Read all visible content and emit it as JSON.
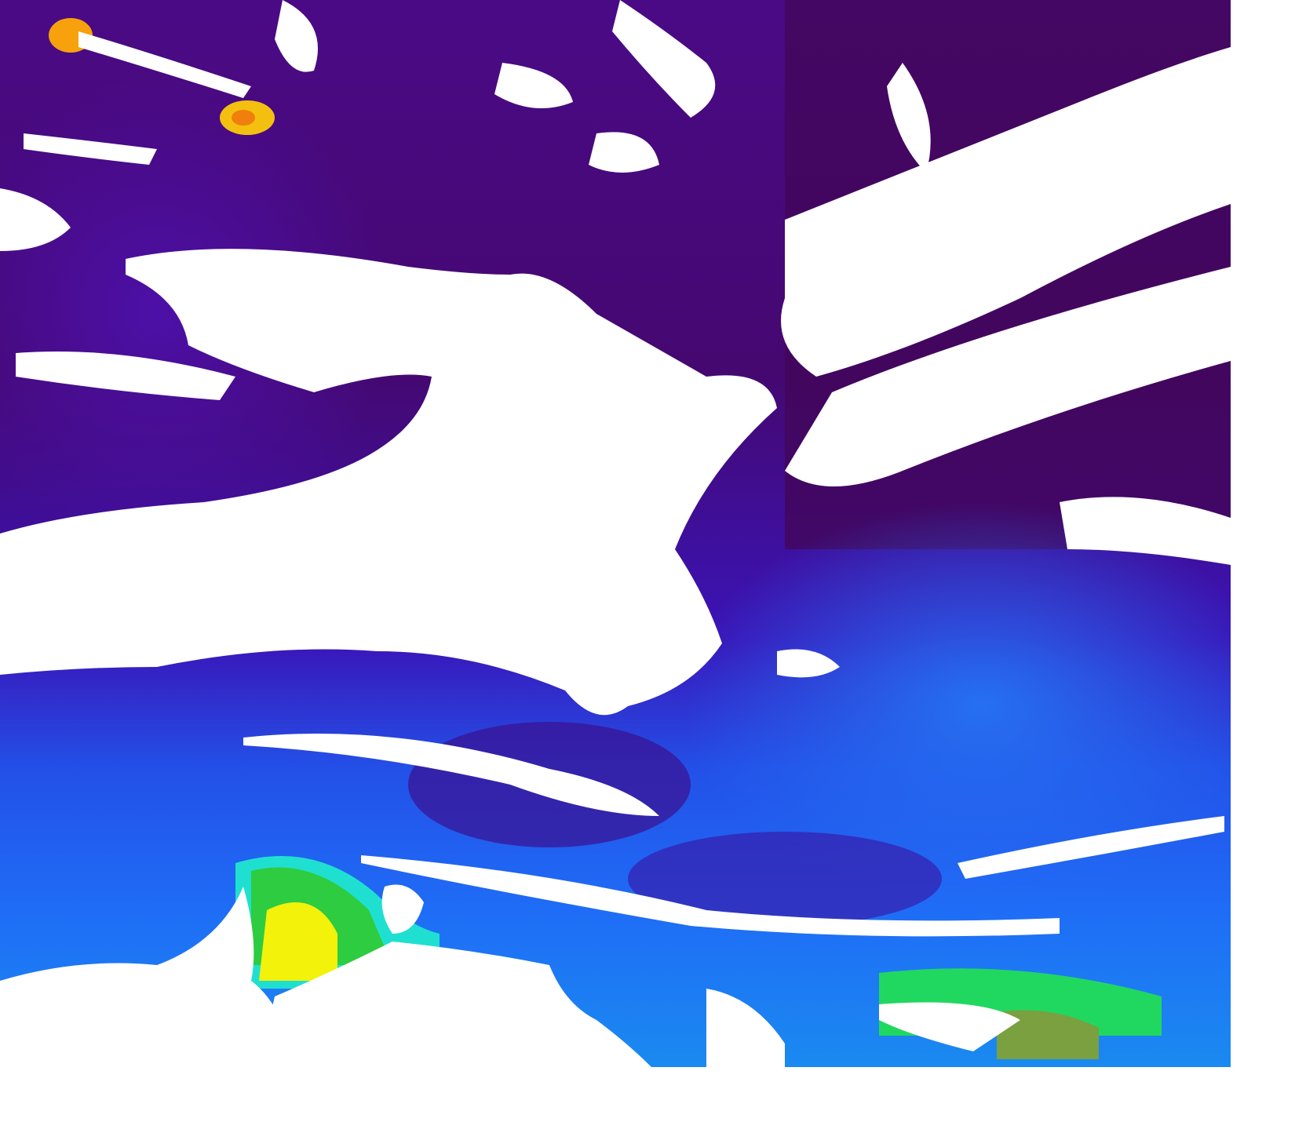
{
  "map": {
    "type": "satellite ocean-colour field with cloud mask",
    "colors": {
      "deep_purple": "#43075f",
      "purple": "#4b0a8c",
      "indigo": "#3a16c8",
      "blue": "#1f5cf2",
      "light_blue": "#2a8cff",
      "cyan": "#19e0e8",
      "green": "#22c83a",
      "yellow": "#f4f20a",
      "orange": "#f7a10d",
      "cloud_land_mask": "#ffffff"
    },
    "legend": null
  }
}
